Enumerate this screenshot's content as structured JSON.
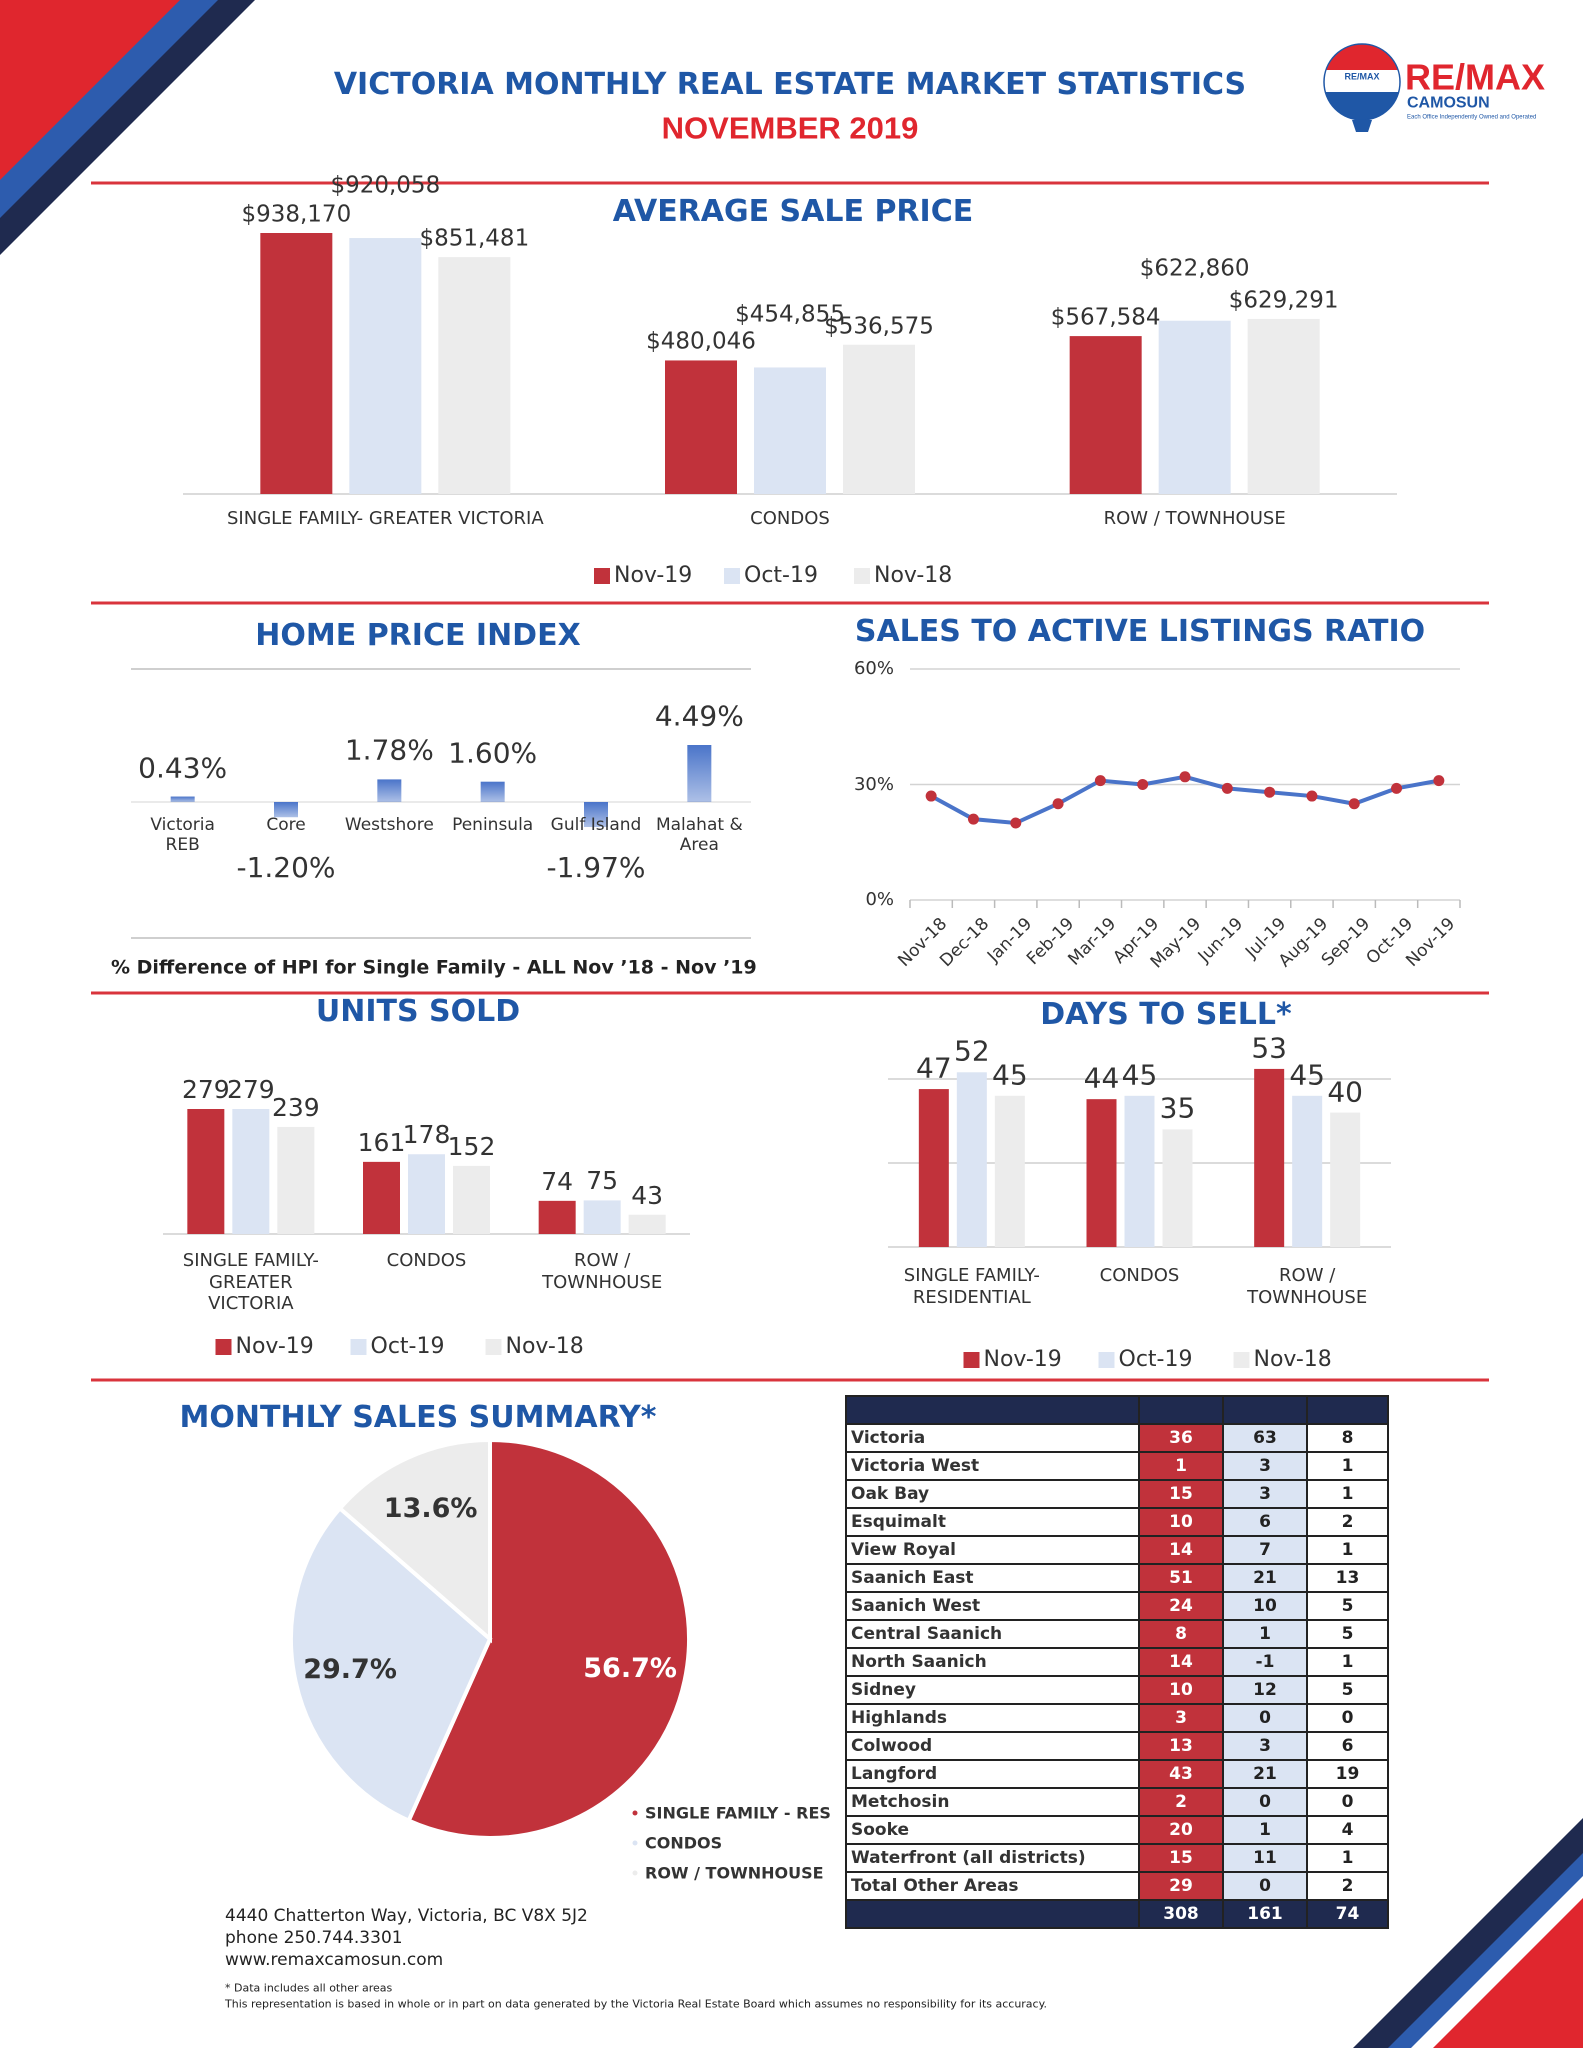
{
  "header": {
    "title": "VICTORIA MONTHLY REAL ESTATE MARKET STATISTICS",
    "subtitle": "NOVEMBER 2019"
  },
  "logo": {
    "balloon": "RE/MAX",
    "brand": "RE/MAX",
    "office": "CAMOSUN",
    "tagline": "Each Office Independently Owned and Operated"
  },
  "chart_data": [
    {
      "type": "bar",
      "title": "AVERAGE SALE PRICE",
      "categories": [
        "SINGLE FAMILY- GREATER VICTORIA",
        "CONDOS",
        "ROW  / TOWNHOUSE"
      ],
      "series": [
        {
          "name": "Nov-19",
          "color": "#c1323b",
          "values": [
            938170,
            480046,
            567584
          ],
          "value_labels": [
            "$938,170",
            "$480,046",
            "$567,584"
          ]
        },
        {
          "name": "Oct-19",
          "color": "#dbe4f3",
          "values": [
            920058,
            454855,
            622860
          ],
          "value_labels": [
            "$920,058",
            "$454,855",
            "$622,860"
          ]
        },
        {
          "name": "Nov-18",
          "color": "#ececec",
          "values": [
            851481,
            536575,
            629291
          ],
          "value_labels": [
            "$851,481",
            "$536,575",
            "$629,291"
          ]
        }
      ]
    },
    {
      "type": "bar",
      "title": "HOME PRICE INDEX",
      "note": "% Difference of HPI for Single Family - ALL Nov ’18 - Nov ’19",
      "categories": [
        "Victoria\nREB",
        "Core",
        "Westshore",
        "Peninsula",
        "Gulf Island",
        "Malahat &\nArea"
      ],
      "values": [
        0.43,
        -1.2,
        1.78,
        1.6,
        -1.97,
        4.49
      ],
      "value_labels": [
        "0.43%",
        "-1.20%",
        "1.78%",
        "1.60%",
        "-1.97%",
        "4.49%"
      ],
      "color": "#4a74c9"
    },
    {
      "type": "line",
      "title": "SALES TO ACTIVE LISTINGS RATIO",
      "categories": [
        "Nov-18",
        "Dec-18",
        "Jan-19",
        "Feb-19",
        "Mar-19",
        "Apr-19",
        "May-19",
        "Jun-19",
        "Jul-19",
        "Aug-19",
        "Sep-19",
        "Oct-19",
        "Nov-19"
      ],
      "values": [
        27,
        21,
        20,
        25,
        31,
        30,
        32,
        29,
        28,
        27,
        25,
        29,
        31
      ],
      "color": "#4a74c9",
      "marker_color": "#c1323b",
      "ylim": [
        0,
        60
      ],
      "yticks": [
        {
          "value": 0,
          "label": "0%"
        },
        {
          "value": 30,
          "label": "30%"
        },
        {
          "value": 60,
          "label": "60%"
        }
      ],
      "grid": true
    },
    {
      "type": "bar",
      "title": "UNITS SOLD",
      "categories": [
        "SINGLE FAMILY-\nGREATER\nVICTORIA",
        "CONDOS",
        "ROW /\nTOWNHOUSE"
      ],
      "series": [
        {
          "name": "Nov-19",
          "color": "#c1323b",
          "values": [
            279,
            161,
            74
          ]
        },
        {
          "name": "Oct-19",
          "color": "#dbe4f3",
          "values": [
            279,
            178,
            75
          ]
        },
        {
          "name": "Nov-18",
          "color": "#ececec",
          "values": [
            239,
            152,
            43
          ]
        }
      ]
    },
    {
      "type": "bar",
      "title": "DAYS TO SELL*",
      "categories": [
        "SINGLE FAMILY-\nRESIDENTIAL",
        "CONDOS",
        "ROW /\nTOWNHOUSE"
      ],
      "series": [
        {
          "name": "Nov-19",
          "color": "#c1323b",
          "values": [
            47,
            44,
            53
          ]
        },
        {
          "name": "Oct-19",
          "color": "#dbe4f3",
          "values": [
            52,
            45,
            45
          ]
        },
        {
          "name": "Nov-18",
          "color": "#ececec",
          "values": [
            45,
            35,
            40
          ]
        }
      ],
      "ylim": [
        0,
        50
      ],
      "yticks": [
        0,
        25,
        50
      ],
      "grid": true,
      "tick_labels": false
    },
    {
      "type": "pie",
      "title": "MONTHLY SALES SUMMARY*",
      "categories": [
        "SINGLE FAMILY - RES",
        "CONDOS",
        "ROW / TOWNHOUSE"
      ],
      "values": [
        56.7,
        29.7,
        13.6
      ],
      "value_labels": [
        "56.7%",
        "29.7%",
        "13.6%"
      ],
      "colors": [
        "#c1323b",
        "#dbe4f3",
        "#ececec"
      ]
    }
  ],
  "table": {
    "rows": [
      [
        "Victoria",
        36,
        63,
        8
      ],
      [
        "Victoria West",
        1,
        3,
        1
      ],
      [
        "Oak Bay",
        15,
        3,
        1
      ],
      [
        "Esquimalt",
        10,
        6,
        2
      ],
      [
        "View Royal",
        14,
        7,
        1
      ],
      [
        "Saanich East",
        51,
        21,
        13
      ],
      [
        "Saanich West",
        24,
        10,
        5
      ],
      [
        "Central Saanich",
        8,
        1,
        5
      ],
      [
        "North Saanich",
        14,
        -1,
        1
      ],
      [
        "Sidney",
        10,
        12,
        5
      ],
      [
        "Highlands",
        3,
        0,
        0
      ],
      [
        "Colwood",
        13,
        3,
        6
      ],
      [
        "Langford",
        43,
        21,
        19
      ],
      [
        "Metchosin",
        2,
        0,
        0
      ],
      [
        "Sooke",
        20,
        1,
        4
      ],
      [
        "Waterfront (all districts)",
        15,
        11,
        1
      ],
      [
        "Total Other Areas",
        29,
        0,
        2
      ]
    ],
    "totals": [
      308,
      161,
      74
    ]
  },
  "footer": {
    "address": [
      "4440 Chatterton Way, Victoria, BC V8X 5J2",
      "phone 250.744.3301",
      "www.remaxcamosun.com"
    ],
    "notes": [
      "* Data includes all other areas",
      "This representation is based in whole or in part on data generated by the Victoria Real Estate Board which assumes no responsibility for its accuracy."
    ]
  }
}
